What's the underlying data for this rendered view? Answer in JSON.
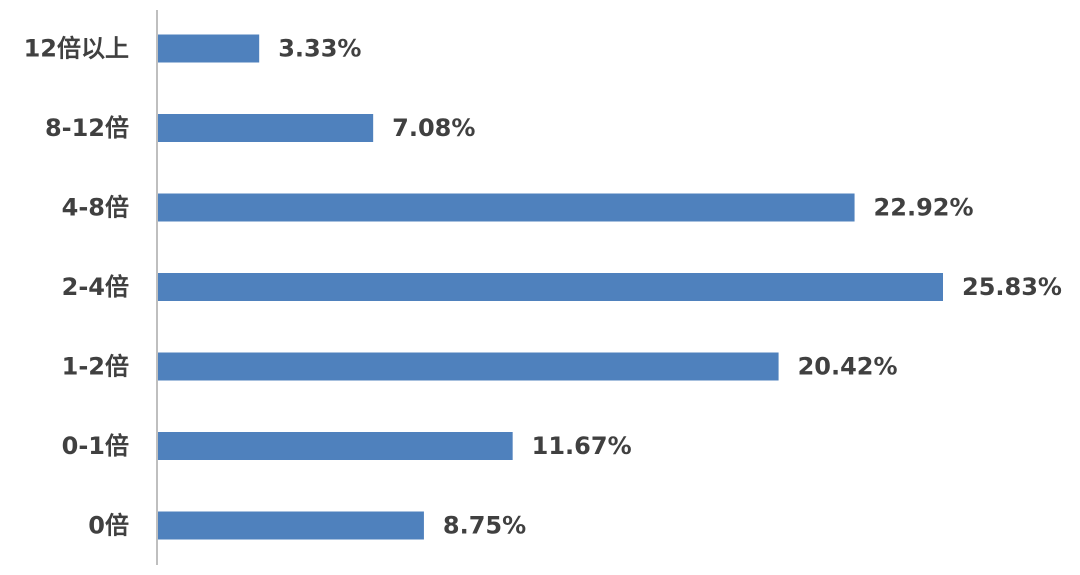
{
  "chart_data": {
    "type": "bar",
    "orientation": "horizontal",
    "categories": [
      "12倍以上",
      "8-12倍",
      "4-8倍",
      "2-4倍",
      "1-2倍",
      "0-1倍",
      "0倍"
    ],
    "values": [
      3.33,
      7.08,
      22.92,
      25.83,
      20.42,
      11.67,
      8.75
    ],
    "value_labels": [
      "3.33%",
      "7.08%",
      "22.92%",
      "25.83%",
      "20.42%",
      "11.67%",
      "8.75%"
    ],
    "title": "",
    "xlabel": "",
    "ylabel": "",
    "xlim": [
      0,
      25.83
    ],
    "grid": false,
    "legend": "none",
    "colors": {
      "bar": "#4f81bd",
      "axis": "#bfbfbf",
      "text": "#404040"
    }
  }
}
